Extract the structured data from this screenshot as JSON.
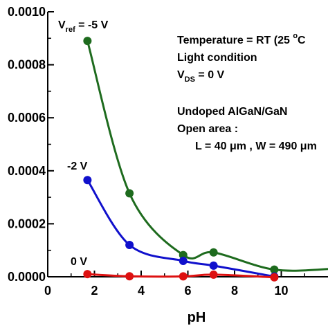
{
  "chart_data": {
    "type": "line",
    "title": "",
    "xlabel": "pH",
    "ylabel": "",
    "xlim": [
      0,
      12
    ],
    "ylim": [
      0,
      0.001
    ],
    "x_ticks": [
      0,
      2,
      4,
      6,
      8,
      10
    ],
    "x_tick_labels": [
      "0",
      "2",
      "4",
      "6",
      "8",
      "10"
    ],
    "y_ticks": [
      0,
      0.0002,
      0.0004,
      0.0006,
      0.0008,
      0.001
    ],
    "y_tick_labels": [
      "0.0000",
      "0.0002",
      "0.0004",
      "0.0006",
      "0.0008",
      "0.0010"
    ],
    "grid": false,
    "series": [
      {
        "name": "V_ref = -5 V",
        "color": "#1e6b1e",
        "x": [
          1.7,
          3.5,
          5.8,
          7.1,
          9.7,
          12.2
        ],
        "y": [
          0.00089,
          0.000315,
          8.2e-05,
          9.2e-05,
          2.7e-05,
          3e-05
        ]
      },
      {
        "name": "-2 V",
        "color": "#1010cc",
        "x": [
          1.7,
          3.5,
          5.8,
          7.1,
          9.7
        ],
        "y": [
          0.000365,
          0.00012,
          6e-05,
          4.2e-05,
          1e-06
        ]
      },
      {
        "name": "0 V",
        "color": "#dd1111",
        "x": [
          1.7,
          3.5,
          5.8,
          7.1,
          9.7
        ],
        "y": [
          1e-05,
          2e-06,
          1.5e-06,
          8e-06,
          -2e-06
        ]
      }
    ],
    "series_labels": [
      {
        "main": "V",
        "sub": "ref",
        "rest": " = -5 V"
      },
      {
        "main": "-2 V"
      },
      {
        "main": "0 V"
      }
    ],
    "annotations": [
      {
        "main": "Temperature = RT (25 ",
        "sup": "o",
        "rest": "C"
      },
      {
        "main": "Light condition"
      },
      {
        "main": "V",
        "sub": "DS",
        "rest": " = 0 V"
      },
      {
        "main": "Undoped AlGaN/GaN"
      },
      {
        "main": "Open area :"
      },
      {
        "main": "L = 40 μm , W = 490 μm"
      }
    ]
  }
}
